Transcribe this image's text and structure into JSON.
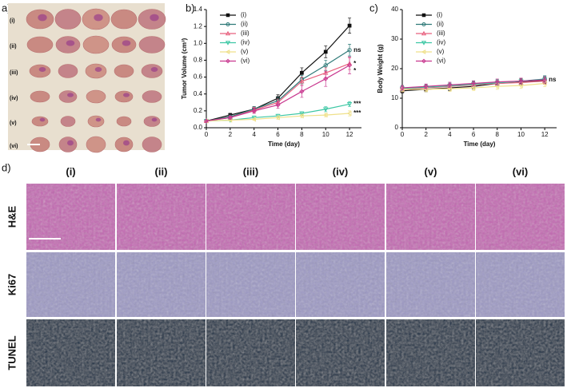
{
  "panel_labels": [
    "a)",
    "b)",
    "c)",
    "d)"
  ],
  "photo_rows": [
    "(i)",
    "(ii)",
    "(iii)",
    "(iv)",
    "(v)",
    "(vi)"
  ],
  "micrograph": {
    "columns": [
      "(i)",
      "(ii)",
      "(iii)",
      "(iv)",
      "(v)",
      "(vi)"
    ],
    "rows": [
      "H&E",
      "Ki67",
      "TUNEL"
    ]
  },
  "chart_data": [
    {
      "type": "line",
      "xlabel": "Time (day)",
      "ylabel": "Tumor Volume (cm³)",
      "x": [
        0,
        2,
        4,
        6,
        8,
        10,
        12
      ],
      "xlim": [
        0,
        13
      ],
      "xticks": [
        0,
        2,
        4,
        6,
        8,
        10,
        12
      ],
      "ylim": [
        0,
        1.4
      ],
      "yticks": [
        {
          "value": 0,
          "label": "0.0"
        },
        0.2,
        0.4,
        0.6,
        0.8,
        {
          "value": 1,
          "label": "1.0"
        },
        1.2,
        1.4
      ],
      "series": [
        {
          "name": "(i)",
          "color": "#111111",
          "marker": "square",
          "values": [
            0.08,
            0.15,
            0.22,
            0.35,
            0.65,
            0.9,
            1.21
          ],
          "errors": [
            0.01,
            0.02,
            0.03,
            0.04,
            0.06,
            0.07,
            0.09
          ]
        },
        {
          "name": "(ii)",
          "color": "#2f7a78",
          "marker": "circle",
          "values": [
            0.08,
            0.13,
            0.22,
            0.32,
            0.57,
            0.74,
            0.92
          ],
          "errors": [
            0.01,
            0.02,
            0.03,
            0.04,
            0.05,
            0.06,
            0.07
          ],
          "annotation": "ns"
        },
        {
          "name": "(iii)",
          "color": "#e8607e",
          "marker": "triangle",
          "values": [
            0.08,
            0.12,
            0.21,
            0.3,
            0.55,
            0.65,
            0.76
          ],
          "errors": [
            0.01,
            0.02,
            0.03,
            0.04,
            0.05,
            0.06,
            0.07
          ],
          "annotation": "*"
        },
        {
          "name": "(iv)",
          "color": "#3cc7a4",
          "marker": "triangle-down",
          "values": [
            0.08,
            0.09,
            0.12,
            0.14,
            0.17,
            0.22,
            0.28
          ],
          "errors": [
            0.01,
            0.01,
            0.02,
            0.02,
            0.02,
            0.03,
            0.03
          ],
          "annotation": "***"
        },
        {
          "name": "(v)",
          "color": "#efe08a",
          "marker": "triangle-left",
          "values": [
            0.08,
            0.09,
            0.1,
            0.12,
            0.14,
            0.15,
            0.17
          ],
          "errors": [
            0.01,
            0.01,
            0.01,
            0.02,
            0.02,
            0.02,
            0.03
          ],
          "annotation": "***"
        },
        {
          "name": "(vi)",
          "color": "#c8368e",
          "marker": "diamond",
          "values": [
            0.08,
            0.12,
            0.2,
            0.27,
            0.43,
            0.58,
            0.74
          ],
          "errors": [
            0.01,
            0.02,
            0.03,
            0.04,
            0.07,
            0.09,
            0.1
          ],
          "annotation": "*"
        }
      ]
    },
    {
      "type": "line",
      "xlabel": "Time (day)",
      "ylabel": "Body Weight (g)",
      "x": [
        0,
        2,
        4,
        6,
        8,
        10,
        12
      ],
      "xlim": [
        0,
        13
      ],
      "xticks": [
        0,
        2,
        4,
        6,
        8,
        10,
        12
      ],
      "ylim": [
        0,
        40
      ],
      "yticks": [
        0,
        10,
        20,
        30,
        40
      ],
      "series": [
        {
          "name": "(i)",
          "color": "#111111",
          "marker": "square",
          "values": [
            12.5,
            13,
            13.5,
            14,
            15,
            15.5,
            16
          ],
          "errors": [
            0.8,
            0.8,
            0.9,
            0.9,
            1,
            1,
            1.1
          ]
        },
        {
          "name": "(ii)",
          "color": "#2f7a78",
          "marker": "circle",
          "values": [
            13.5,
            13.8,
            14.2,
            14.8,
            15.3,
            15.8,
            16.5
          ],
          "errors": [
            0.8,
            0.8,
            0.9,
            0.9,
            1,
            1,
            1.1
          ]
        },
        {
          "name": "(iii)",
          "color": "#e8607e",
          "marker": "triangle",
          "values": [
            13,
            13.5,
            14,
            14.5,
            15,
            15.3,
            15.8
          ],
          "errors": [
            0.8,
            0.8,
            0.9,
            0.9,
            1,
            1,
            1.1
          ]
        },
        {
          "name": "(iv)",
          "color": "#3cc7a4",
          "marker": "triangle-down",
          "values": [
            13.3,
            13.7,
            14.2,
            14.7,
            15.2,
            15.7,
            16.3
          ],
          "errors": [
            0.8,
            0.8,
            0.9,
            0.9,
            1,
            1,
            1.1
          ]
        },
        {
          "name": "(v)",
          "color": "#efe08a",
          "marker": "triangle-left",
          "values": [
            13,
            13,
            13.2,
            13.5,
            14,
            14.3,
            15
          ],
          "errors": [
            0.8,
            0.8,
            0.9,
            0.9,
            1,
            1,
            1.1
          ]
        },
        {
          "name": "(vi)",
          "color": "#c8368e",
          "marker": "diamond",
          "values": [
            13.5,
            14,
            14.5,
            15,
            15.5,
            15.8,
            16.2
          ],
          "errors": [
            0.8,
            0.8,
            0.9,
            0.9,
            1,
            1,
            1.1
          ],
          "annotation": "ns"
        }
      ]
    }
  ]
}
